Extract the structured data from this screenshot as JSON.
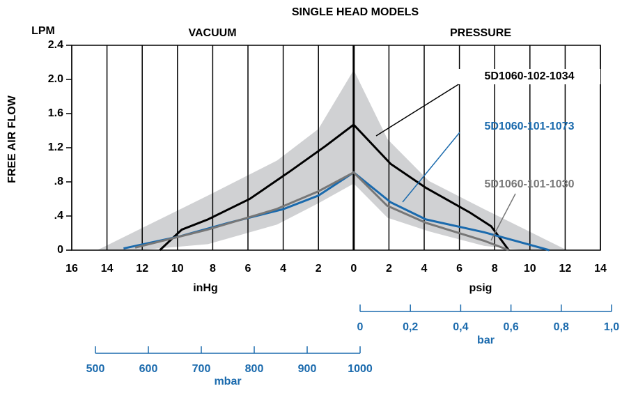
{
  "chart_data": {
    "type": "line",
    "title": "SINGLE HEAD MODELS",
    "y_unit": "LPM",
    "y_label": "FREE AIR FLOW",
    "left_label": "VACUUM",
    "right_label": "PRESSURE",
    "x_left_unit": "inHg",
    "x_right_unit": "psig",
    "xlim": [
      -16,
      14
    ],
    "ylim": [
      0,
      2.4
    ],
    "xticks": [
      {
        "value": -16,
        "label": "16"
      },
      {
        "value": -14,
        "label": "14"
      },
      {
        "value": -12,
        "label": "12"
      },
      {
        "value": -10,
        "label": "10"
      },
      {
        "value": -8,
        "label": "8"
      },
      {
        "value": -6,
        "label": "6"
      },
      {
        "value": -4,
        "label": "4"
      },
      {
        "value": -2,
        "label": "2"
      },
      0,
      2,
      4,
      6,
      8,
      10,
      12,
      14
    ],
    "yticks": [
      0,
      {
        "value": 0.4,
        "label": ".4"
      },
      {
        "value": 0.8,
        "label": ".8"
      },
      1.2,
      1.6,
      {
        "value": 2,
        "label": "2.0"
      },
      2.4
    ],
    "band": {
      "color": "#d0d1d3",
      "x": [
        -14.55,
        -12.2,
        -8.27,
        -4.35,
        -2,
        0,
        1.92,
        4.27,
        7.41,
        9.76,
        12.1
      ],
      "upper": [
        0,
        0.24,
        0.64,
        1.05,
        1.42,
        2.11,
        1.3,
        0.81,
        0.48,
        0.24,
        0
      ],
      "lower": [
        0,
        0,
        0.07,
        0.3,
        0.55,
        0.78,
        0.38,
        0.22,
        0.05,
        0,
        0
      ]
    },
    "series": [
      {
        "name": "5D1060-102-1034",
        "color": "#000000",
        "x": [
          -11.0,
          -9.76,
          -8.27,
          -5.9,
          -3.57,
          -1.6,
          0,
          2.1,
          4.1,
          6.6,
          7.8,
          8.8
        ],
        "values": [
          0,
          0.24,
          0.36,
          0.6,
          0.93,
          1.22,
          1.47,
          1.01,
          0.73,
          0.44,
          0.28,
          0
        ]
      },
      {
        "name": "5D1060-101-1073",
        "color": "#1a6aad",
        "x": [
          -13.06,
          -9.9,
          -7.1,
          -4.0,
          -2,
          0,
          2.1,
          4.1,
          7.4,
          11.1
        ],
        "values": [
          0.02,
          0.16,
          0.32,
          0.48,
          0.64,
          0.91,
          0.56,
          0.36,
          0.21,
          0
        ]
      },
      {
        "name": "5D1060-101-1030",
        "color": "#777777",
        "x": [
          -12.4,
          -8.3,
          -4.4,
          -2,
          0,
          1.9,
          4.1,
          7.4,
          8.8
        ],
        "values": [
          0.03,
          0.24,
          0.48,
          0.69,
          0.91,
          0.52,
          0.32,
          0.11,
          0
        ]
      }
    ],
    "bar_axis": {
      "label": "bar",
      "lim": [
        0,
        1
      ],
      "ticks": [
        0,
        {
          "value": 0.2,
          "label": "0,2"
        },
        {
          "value": 0.4,
          "label": "0,4"
        },
        {
          "value": 0.6,
          "label": "0,6"
        },
        {
          "value": 0.8,
          "label": "0,8"
        },
        {
          "value": 1,
          "label": "1,0"
        }
      ]
    },
    "mbar_axis": {
      "label": "mbar",
      "lim": [
        500,
        1000
      ],
      "ticks": [
        500,
        600,
        700,
        800,
        900,
        1000
      ]
    }
  }
}
